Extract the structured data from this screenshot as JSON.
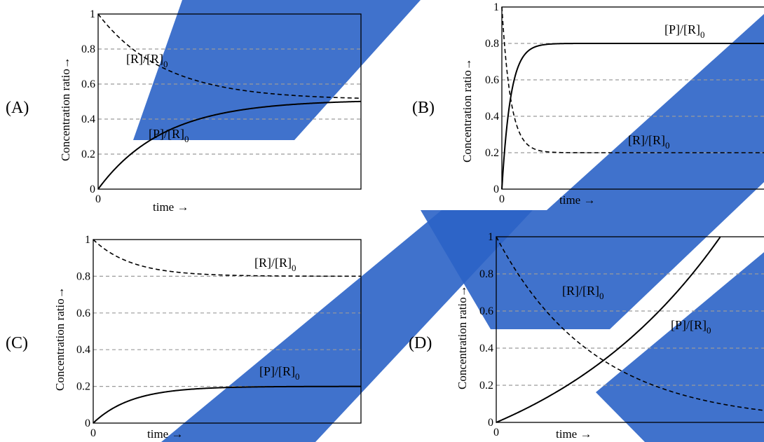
{
  "watermark": {
    "color": "#2b63c6",
    "opacity": 0.9
  },
  "chart_data": [
    {
      "panel": "(A)",
      "type": "line",
      "ylabel": "Concentration ratio→",
      "xlabel": "time →",
      "x_tick_labels": [
        "0"
      ],
      "y_tick_labels": [
        "0",
        "0.2",
        "0.4",
        "0.6",
        "0.8",
        "1"
      ],
      "ylim": [
        0,
        1
      ],
      "grid": "dashed horizontal",
      "series": [
        {
          "name": "[R]/[R]",
          "subscript": "0",
          "style": "dashed",
          "start": 1.0,
          "end": 0.51,
          "rate": 4.0
        },
        {
          "name": "[P]/[R]",
          "subscript": "0",
          "style": "solid",
          "start": 0.0,
          "end": 0.51,
          "rate": 4.0
        }
      ]
    },
    {
      "panel": "(B)",
      "type": "line",
      "ylabel": "Concentration ratio→",
      "xlabel": "time →",
      "x_tick_labels": [
        "0"
      ],
      "y_tick_labels": [
        "0",
        "0.2",
        "0.4",
        "0.6",
        "0.8",
        "1"
      ],
      "ylim": [
        0,
        1
      ],
      "grid": "dashed horizontal",
      "series": [
        {
          "name": "[P]/[R]",
          "subscript": "0",
          "style": "solid",
          "start": 0.0,
          "end": 0.8,
          "rate": 30.0
        },
        {
          "name": "[R]/[R]",
          "subscript": "0",
          "style": "dashed",
          "start": 1.0,
          "end": 0.2,
          "rate": 30.0
        }
      ]
    },
    {
      "panel": "(C)",
      "type": "line",
      "ylabel": "Concentration ratio→",
      "xlabel": "time →",
      "x_tick_labels": [
        "0"
      ],
      "y_tick_labels": [
        "0",
        "0.2",
        "0.4",
        "0.6",
        "0.8",
        "1"
      ],
      "ylim": [
        0,
        1
      ],
      "grid": "dashed horizontal",
      "series": [
        {
          "name": "[R]/[R]",
          "subscript": "0",
          "style": "dashed",
          "start": 1.0,
          "end": 0.8,
          "rate": 7.0
        },
        {
          "name": "[P]/[R]",
          "subscript": "0",
          "style": "solid",
          "start": 0.0,
          "end": 0.2,
          "rate": 7.0
        }
      ]
    },
    {
      "panel": "(D)",
      "type": "line",
      "ylabel": "Concentration ratio→",
      "xlabel": "time →",
      "x_tick_labels": [
        "0"
      ],
      "y_tick_labels": [
        "0",
        "0.2",
        "0.4",
        "0.6",
        "0.8",
        "1"
      ],
      "ylim": [
        0,
        1
      ],
      "grid": "dashed horizontal",
      "series": [
        {
          "name": "[R]/[R]",
          "subscript": "0",
          "style": "dashed",
          "decay_rate": 2.8
        },
        {
          "name": "[P]/[R]",
          "subscript": "0",
          "style": "solid",
          "growth": "convex",
          "reaches_one_at": 0.82
        }
      ]
    }
  ]
}
